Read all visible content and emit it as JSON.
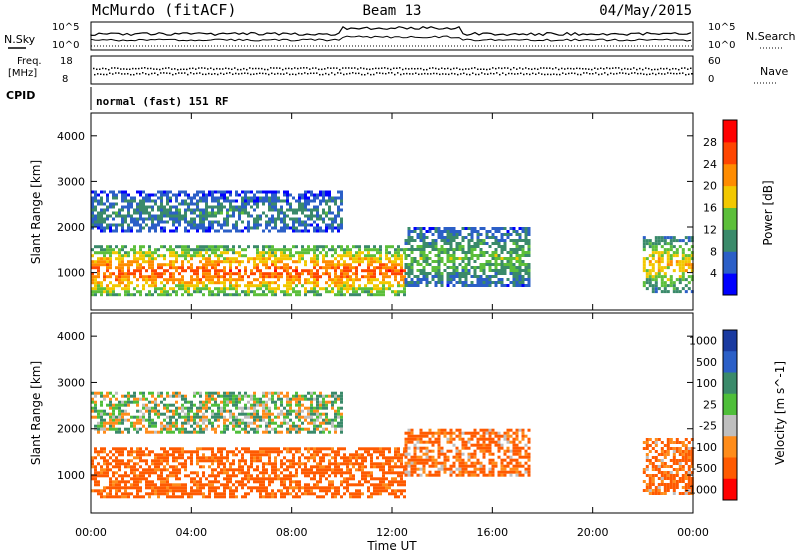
{
  "header": {
    "station": "McMurdo (fitACF)",
    "beam": "Beam 13",
    "date": "04/May/2015"
  },
  "noise_panel": {
    "left_label": "N.Sky",
    "right_label": "N.Search",
    "left_ticks": [
      "10^5",
      "10^0"
    ],
    "right_ticks": [
      "10^5",
      "10^0"
    ]
  },
  "freq_panel": {
    "left_label_1": "Freq.",
    "left_label_2": "[MHz]",
    "right_label": "Nave",
    "left_ticks": [
      "18",
      "8"
    ],
    "right_ticks": [
      "60",
      "0"
    ]
  },
  "cpid": {
    "label": "CPID",
    "text": "normal (fast) 151 RF"
  },
  "time_axis": {
    "label": "Time UT",
    "ticks": [
      "00:00",
      "04:00",
      "08:00",
      "12:00",
      "16:00",
      "20:00",
      "00:00"
    ]
  },
  "colors": {
    "power": [
      "#0000ff",
      "#2b5fc7",
      "#3a8a6a",
      "#5cbf3a",
      "#f2c800",
      "#ff8c00",
      "#ff4500",
      "#ff0000"
    ],
    "velocity": [
      "#ff0000",
      "#ff5a00",
      "#ff8c1a",
      "#bfbfbf",
      "#4fbf3a",
      "#3a8a6a",
      "#2b5fc7",
      "#1a3aa0"
    ]
  },
  "chart_data": [
    {
      "type": "heatmap",
      "title": "",
      "xlabel": "Time UT",
      "ylabel": "Slant Range [km]",
      "x_range_hours": [
        0,
        24
      ],
      "ylim": [
        180,
        4500
      ],
      "yticks": [
        "1000",
        "2000",
        "3000",
        "4000"
      ],
      "colorbar": {
        "label": "Power [dB]",
        "range": [
          0,
          32
        ],
        "ticks": [
          "4",
          "8",
          "12",
          "16",
          "20",
          "24",
          "28"
        ]
      },
      "echo_regions": [
        {
          "t_start": 0.0,
          "t_end": 12.5,
          "range_low": 500,
          "range_high": 1600,
          "power_db": 26
        },
        {
          "t_start": 12.5,
          "t_end": 17.5,
          "range_low": 700,
          "range_high": 2000,
          "power_db": 14
        },
        {
          "t_start": 0.0,
          "t_end": 10.0,
          "range_low": 1900,
          "range_high": 2800,
          "power_db": 10
        },
        {
          "t_start": 22.0,
          "t_end": 24.0,
          "range_low": 600,
          "range_high": 1800,
          "power_db": 20
        }
      ]
    },
    {
      "type": "heatmap",
      "title": "",
      "xlabel": "Time UT",
      "ylabel": "Slant Range [km]",
      "x_range_hours": [
        0,
        24
      ],
      "ylim": [
        180,
        4500
      ],
      "yticks": [
        "1000",
        "2000",
        "3000",
        "4000"
      ],
      "colorbar": {
        "label": "Velocity [m s^-1]",
        "ticks": [
          "1000",
          "500",
          "100",
          "25",
          "-25",
          "-100",
          "-500",
          "-1000"
        ]
      },
      "echo_regions": [
        {
          "t_start": 0.0,
          "t_end": 12.5,
          "range_low": 500,
          "range_high": 1600,
          "velocity": -200
        },
        {
          "t_start": 12.5,
          "t_end": 17.5,
          "range_low": 1000,
          "range_high": 2000,
          "velocity": -150
        },
        {
          "t_start": 0.0,
          "t_end": 10.0,
          "range_low": 1900,
          "range_high": 2800,
          "velocity": 50
        },
        {
          "t_start": 22.0,
          "t_end": 24.0,
          "range_low": 600,
          "range_high": 1800,
          "velocity": -150
        }
      ]
    }
  ]
}
